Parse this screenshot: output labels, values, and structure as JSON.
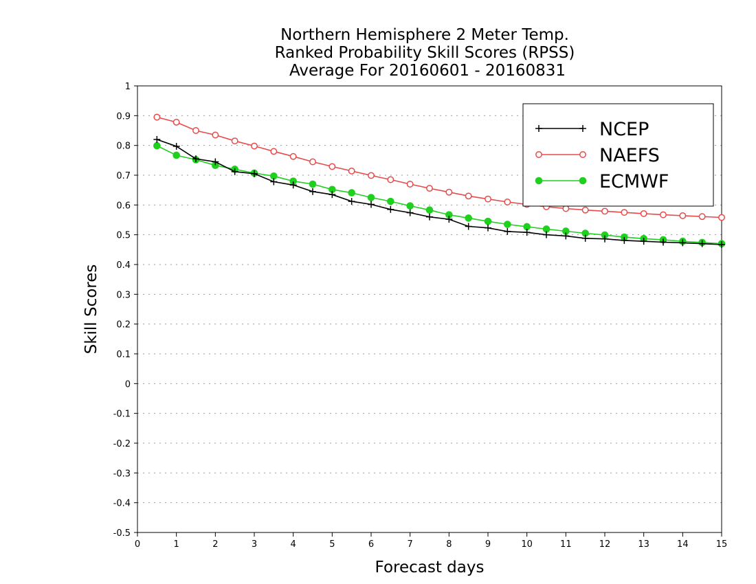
{
  "chart_data": {
    "type": "line",
    "title": [
      "Northern Hemisphere 2 Meter Temp.",
      "Ranked Probability Skill Scores (RPSS)",
      "Average For 20160601 - 20160831"
    ],
    "xlabel": "Forecast days",
    "ylabel": "Skill Scores",
    "xlim": [
      0,
      15
    ],
    "ylim": [
      -0.5,
      1
    ],
    "x_ticks": [
      "0",
      "1",
      "2",
      "3",
      "4",
      "5",
      "6",
      "7",
      "8",
      "9",
      "10",
      "11",
      "12",
      "13",
      "14",
      "15"
    ],
    "y_ticks": [
      "1",
      "0.9",
      "0.8",
      "0.7",
      "0.6",
      "0.5",
      "0.4",
      "0.3",
      "0.2",
      "0.1",
      "0",
      "-0.1",
      "-0.2",
      "-0.3",
      "-0.4",
      "-0.5"
    ],
    "grid": "horizontal dotted",
    "legend_position": "top-right",
    "x": [
      0.5,
      1,
      1.5,
      2,
      2.5,
      3,
      3.5,
      4,
      4.5,
      5,
      5.5,
      6,
      6.5,
      7,
      7.5,
      8,
      8.5,
      9,
      9.5,
      10,
      10.5,
      11,
      11.5,
      12,
      12.5,
      13,
      13.5,
      14,
      14.5,
      15
    ],
    "series": [
      {
        "name": "NCEP",
        "color": "#000000",
        "marker": "plus",
        "values": [
          0.82,
          0.797,
          0.755,
          0.745,
          0.712,
          0.705,
          0.678,
          0.667,
          0.645,
          0.635,
          0.612,
          0.602,
          0.585,
          0.574,
          0.56,
          0.552,
          0.528,
          0.523,
          0.511,
          0.508,
          0.5,
          0.496,
          0.488,
          0.486,
          0.481,
          0.478,
          0.475,
          0.473,
          0.47,
          0.467
        ]
      },
      {
        "name": "NAEFS",
        "color": "#e84a4a",
        "marker": "open-circle",
        "values": [
          0.895,
          0.878,
          0.85,
          0.835,
          0.815,
          0.798,
          0.78,
          0.763,
          0.745,
          0.729,
          0.714,
          0.699,
          0.685,
          0.67,
          0.656,
          0.643,
          0.63,
          0.62,
          0.61,
          0.602,
          0.594,
          0.588,
          0.583,
          0.579,
          0.575,
          0.571,
          0.567,
          0.564,
          0.561,
          0.558
        ]
      },
      {
        "name": "ECMWF",
        "color": "#1fd01f",
        "marker": "filled-circle",
        "values": [
          0.799,
          0.767,
          0.752,
          0.733,
          0.72,
          0.707,
          0.697,
          0.68,
          0.67,
          0.652,
          0.641,
          0.625,
          0.612,
          0.597,
          0.583,
          0.567,
          0.556,
          0.545,
          0.535,
          0.527,
          0.519,
          0.512,
          0.505,
          0.499,
          0.492,
          0.487,
          0.483,
          0.478,
          0.474,
          0.47
        ]
      }
    ]
  }
}
